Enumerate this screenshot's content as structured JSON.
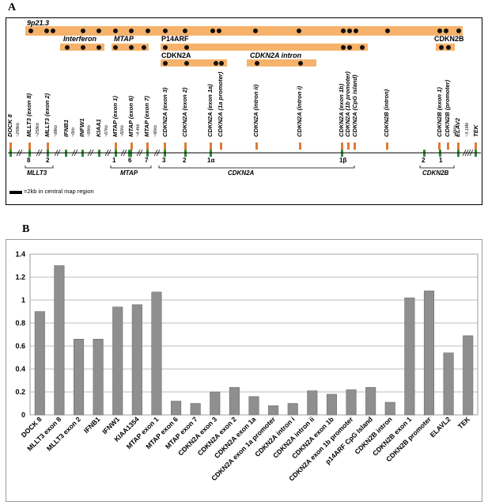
{
  "panel_a_label": "A",
  "panel_b_label": "B",
  "map": {
    "region_label": "9p21.3",
    "interferon_label": "Interferon",
    "mtap_label": "MTAP",
    "p14arf_label": "P14ARF",
    "cdkn2b_top_label": "CDKN2B",
    "cdkn2a_label": "CDKN2A",
    "cdkn2a_intron_label": "CDKN2A intron",
    "marker_labels": [
      "DOCK 8",
      "MLLT3 (exon 8)",
      "MLLT3 (exon 2)",
      "IFNB1",
      "INFW1",
      "KIAA1",
      "MTAP (exon 1)",
      "MTAP (exon 6)",
      "MTAP (exon 7)",
      "CDKN2A (exon 3)",
      "CDKN2A (exon 2)",
      "CDKN2A (exon 1a)",
      "CDKN2A (1a promoter)",
      "CDKN2A (intron ii)",
      "CDKN2A (intron i)",
      "CDKN2A (exon 1b)",
      "CDKN2A (1b promoter)",
      "CDKN2A (CpG island)",
      "CDKN2B (intron)",
      "CDKN2B (exon 1)",
      "CDKN2B (promoter)",
      "ELAV2",
      "TEK"
    ],
    "distance_labels": [
      "~258kb",
      "~258kb",
      "~98kb",
      "~6kb",
      "~99kb",
      "~67kb",
      "~82kb",
      "~4.4kb",
      "~90kb",
      "~49kb",
      "~3.1Mb"
    ],
    "exon_numbers": [
      "8",
      "2",
      "1",
      "6",
      "7",
      "3",
      "2",
      "1α",
      "1β",
      "2",
      "1"
    ],
    "gene_labels": [
      "MLLT3",
      "MTAP",
      "CDKN2A",
      "CDKN2B"
    ],
    "legend_text": "=2kb in central map region",
    "colors": {
      "bar": "#f6b26b",
      "tick_orange": "#e07a36",
      "tick_green": "#2e8b3a"
    }
  },
  "chart_data": {
    "type": "bar",
    "title": "",
    "xlabel": "",
    "ylabel": "",
    "ylim": [
      0,
      1.4
    ],
    "yticks": [
      "0",
      "0.2",
      "0.4",
      "0.6",
      "0.8",
      "1",
      "1.2",
      "1.4"
    ],
    "categories": [
      "DOCK 8",
      "MLLT3 exon 8",
      "MLLT3 exon 2",
      "IFNB1",
      "IFNW1",
      "KIAA1354",
      "MTAP exon 1",
      "MTAP exon 6",
      "MTAP exon 7",
      "CDKN2A exon 3",
      "CDKN2A exon 2",
      "CDKN2A exon 1a",
      "CDKN2A exon 1a promoter",
      "CDKN2A intron i",
      "CDKN2A intron ii",
      "CDKN2A exon 1b",
      "CDKN2A exon 1b promoter",
      "p14ARF CpG Island",
      "CDKN2B intron",
      "CDKN2B exon 1",
      "CDKN2B promoter",
      "ELAVL2",
      "TEK"
    ],
    "values": [
      0.9,
      1.3,
      0.66,
      0.66,
      0.94,
      0.96,
      1.07,
      0.12,
      0.1,
      0.2,
      0.24,
      0.16,
      0.08,
      0.1,
      0.21,
      0.18,
      0.22,
      0.24,
      0.11,
      1.02,
      1.08,
      0.54,
      0.69
    ],
    "bar_color": "#8f8f8f",
    "grid": true
  }
}
